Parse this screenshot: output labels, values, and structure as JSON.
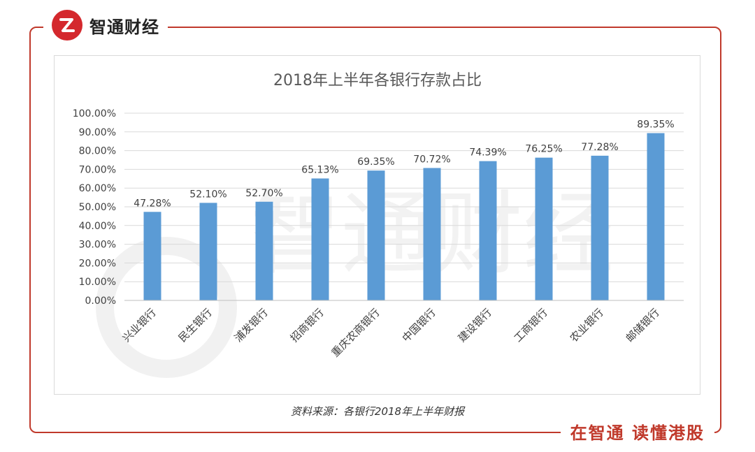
{
  "brand": {
    "name": "智通财经",
    "logo_glyph": "Z"
  },
  "footer": {
    "slogan": "在智通  读懂港股",
    "source": "资料来源：各银行2018年上半年财报"
  },
  "watermark": {
    "text": "智通财经"
  },
  "colors": {
    "accent": "#c0392b",
    "bar": "#5b9bd5",
    "logo_bg": "#d4282d"
  },
  "chart_data": {
    "type": "bar",
    "title": "2018年上半年各银行存款占比",
    "categories": [
      "兴业银行",
      "民生银行",
      "浦发银行",
      "招商银行",
      "重庆农商银行",
      "中国银行",
      "建设银行",
      "工商银行",
      "农业银行",
      "邮储银行"
    ],
    "values": [
      47.28,
      52.1,
      52.7,
      65.13,
      69.35,
      70.72,
      74.39,
      76.25,
      77.28,
      89.35
    ],
    "value_labels": [
      "47.28%",
      "52.10%",
      "52.70%",
      "65.13%",
      "69.35%",
      "70.72%",
      "74.39%",
      "76.25%",
      "77.28%",
      "89.35%"
    ],
    "y_ticks": [
      "0.00%",
      "10.00%",
      "20.00%",
      "30.00%",
      "40.00%",
      "50.00%",
      "60.00%",
      "70.00%",
      "80.00%",
      "90.00%",
      "100.00%"
    ],
    "ylim": [
      0,
      100
    ],
    "xlabel": "",
    "ylabel": "",
    "grid": true
  }
}
